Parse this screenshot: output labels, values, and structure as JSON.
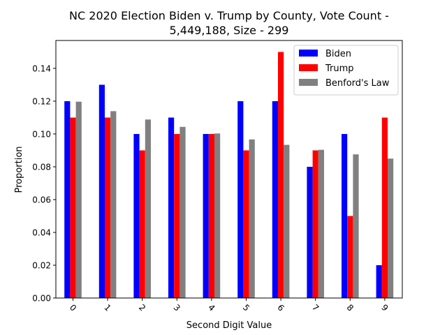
{
  "chart_data": {
    "type": "bar",
    "title_lines": [
      "NC 2020 Election Biden v. Trump by County, Vote Count -",
      "5,449,188, Size - 299"
    ],
    "xlabel": "Second Digit Value",
    "ylabel": "Proportion",
    "categories": [
      "0",
      "1",
      "2",
      "3",
      "4",
      "5",
      "6",
      "7",
      "8",
      "9"
    ],
    "ylim": [
      0,
      0.157
    ],
    "yticks": [
      "0.00",
      "0.02",
      "0.04",
      "0.06",
      "0.08",
      "0.10",
      "0.12",
      "0.14"
    ],
    "legend_position": "upper right",
    "grid": false,
    "series": [
      {
        "name": "Biden",
        "color": "#0000ff",
        "values": [
          0.12,
          0.13,
          0.1,
          0.11,
          0.1,
          0.12,
          0.12,
          0.08,
          0.1,
          0.02
        ]
      },
      {
        "name": "Trump",
        "color": "#ff0000",
        "values": [
          0.11,
          0.11,
          0.09,
          0.1,
          0.1,
          0.09,
          0.15,
          0.09,
          0.05,
          0.11
        ]
      },
      {
        "name": "Benford's Law",
        "color": "#808080",
        "values": [
          0.11968,
          0.11389,
          0.10882,
          0.10433,
          0.10031,
          0.09668,
          0.09337,
          0.09035,
          0.08757,
          0.085
        ]
      }
    ]
  }
}
